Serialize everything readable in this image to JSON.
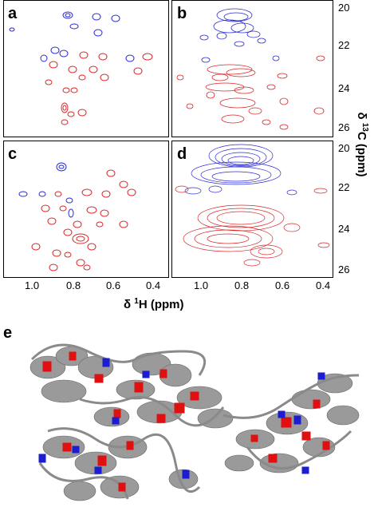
{
  "panels": [
    {
      "id": "a",
      "label": "a"
    },
    {
      "id": "b",
      "label": "b"
    },
    {
      "id": "c",
      "label": "c"
    },
    {
      "id": "d",
      "label": "d"
    }
  ],
  "x_axis": {
    "ticks": [
      "1.0",
      "0.8",
      "0.6",
      "0.4"
    ],
    "title_symbol": "δ",
    "title_sup": "1",
    "title_rest": "H (ppm)"
  },
  "y_axis": {
    "ticks_top": [
      "20",
      "22",
      "24",
      "26"
    ],
    "ticks_bottom": [
      "20",
      "22",
      "24",
      "26"
    ],
    "title_symbol": "δ",
    "title_sup": "13",
    "title_rest": "C (ppm)"
  },
  "structure_panel": {
    "label": "e"
  },
  "colors": {
    "positive": "#d62728",
    "negative": "#2b2bd6",
    "helix": "#9a9a9a",
    "highlight_red": "#e01010",
    "highlight_blue": "#1c1cd0"
  }
}
